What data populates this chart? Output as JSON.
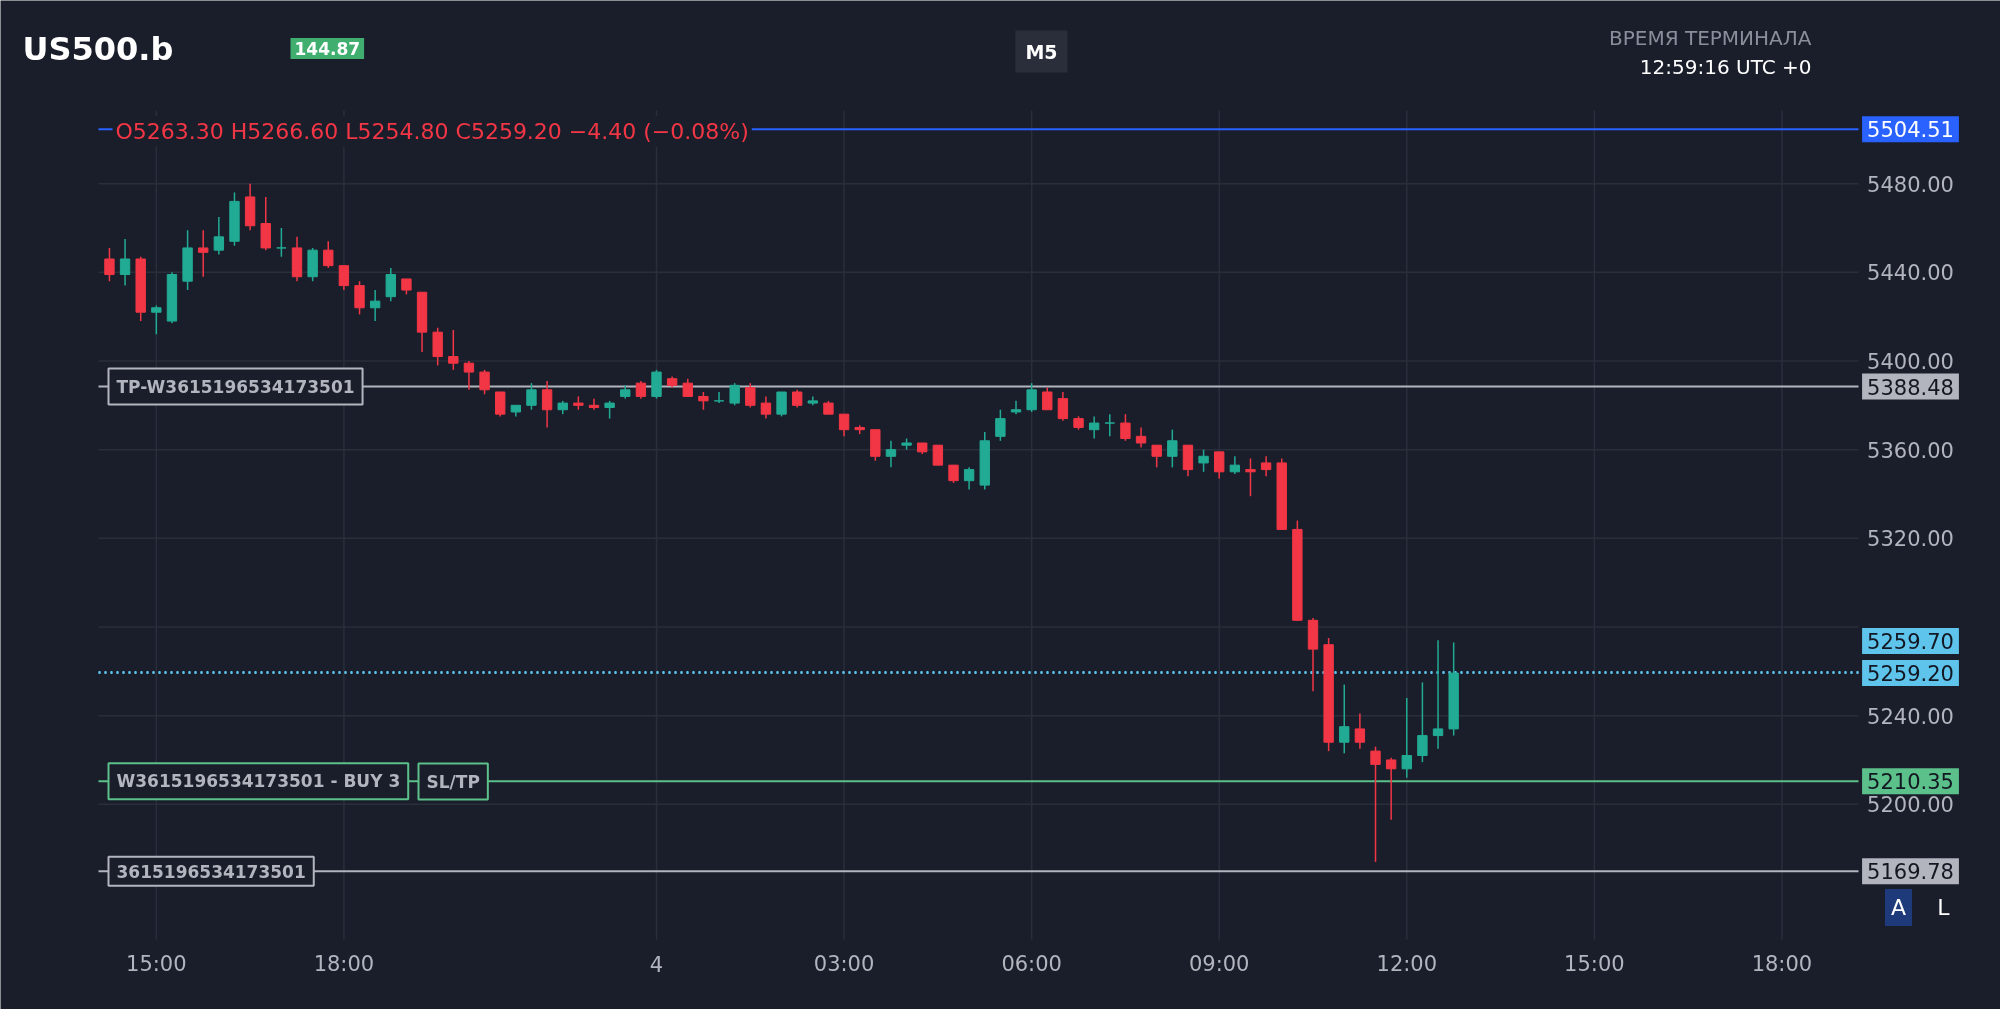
{
  "chart_data": {
    "type": "candlestick",
    "title": "US500.b",
    "annotations": [
      "144.87",
      "M5",
      "O5263.30 H5266.60 L5254.80 C5259.20 −4.40 (−0.08%)",
      "ВРЕМЯ ТЕРМИНАЛА",
      "12:59:16 UTC +0",
      "SL/TP",
      "A",
      "L",
      {
        "text": "TP-W3615196534173501",
        "y": 5388.48
      },
      {
        "text": "W3615196534173501 - BUY 3",
        "y": 5210.35
      },
      {
        "text": "3615196534173501",
        "y": 5169.78
      }
    ],
    "categories": [
      null,
      null,
      null,
      "15:00",
      null,
      null,
      null,
      null,
      null,
      null,
      null,
      null,
      null,
      null,
      null,
      "18:00",
      null,
      null,
      null,
      null,
      null,
      null,
      null,
      null,
      null,
      null,
      null,
      null,
      null,
      null,
      null,
      null,
      null,
      null,
      null,
      "4",
      null,
      null,
      null,
      null,
      null,
      null,
      null,
      null,
      null,
      null,
      null,
      "03:00",
      null,
      null,
      null,
      null,
      null,
      null,
      null,
      null,
      null,
      null,
      null,
      "06:00",
      null,
      null,
      null,
      null,
      null,
      null,
      null,
      null,
      null,
      null,
      null,
      "09:00",
      null,
      null,
      null,
      null,
      null,
      null,
      null,
      null,
      null,
      null,
      null,
      "12:00",
      null,
      null,
      null,
      null,
      null,
      null,
      null,
      null,
      null,
      null,
      null,
      "15:00",
      null,
      null,
      null,
      null,
      null,
      null,
      null,
      null,
      null,
      null,
      null,
      "18:00",
      null,
      null,
      null,
      null
    ],
    "ohlc": [
      [
        5446,
        5451,
        5436,
        5439
      ],
      [
        5439,
        5455,
        5434,
        5446
      ],
      [
        5446,
        5447,
        5418,
        5422
      ],
      [
        5422,
        5425,
        5412,
        5424
      ],
      [
        5418,
        5440,
        5417,
        5439
      ],
      [
        5436,
        5459,
        5432,
        5451
      ],
      [
        5451,
        5459,
        5438,
        5449
      ],
      [
        5450,
        5465,
        5448,
        5456
      ],
      [
        5454,
        5476,
        5452,
        5472
      ],
      [
        5474,
        5480,
        5459,
        5461
      ],
      [
        5462,
        5474,
        5450,
        5451
      ],
      [
        5451,
        5460,
        5447,
        5451
      ],
      [
        5451,
        5456,
        5436,
        5438
      ],
      [
        5438,
        5451,
        5436,
        5450
      ],
      [
        5450,
        5454,
        5442,
        5443
      ],
      [
        5443,
        5443,
        5432,
        5434
      ],
      [
        5434,
        5436,
        5421,
        5424
      ],
      [
        5424,
        5432,
        5418,
        5427
      ],
      [
        5429,
        5442,
        5427,
        5439
      ],
      [
        5437,
        5437,
        5430,
        5432
      ],
      [
        5431,
        5431,
        5404,
        5413
      ],
      [
        5413,
        5415,
        5398,
        5402
      ],
      [
        5402,
        5414,
        5396,
        5399
      ],
      [
        5399,
        5400,
        5387,
        5395
      ],
      [
        5395,
        5396,
        5385,
        5387
      ],
      [
        5386,
        5386,
        5375,
        5376
      ],
      [
        5377,
        5380,
        5375,
        5380
      ],
      [
        5380,
        5390,
        5378,
        5387
      ],
      [
        5387,
        5391,
        5370,
        5378
      ],
      [
        5378,
        5382,
        5376,
        5381
      ],
      [
        5381,
        5384,
        5378,
        5380
      ],
      [
        5380,
        5383,
        5378,
        5379
      ],
      [
        5379,
        5382,
        5374,
        5381
      ],
      [
        5384,
        5389,
        5383,
        5387
      ],
      [
        5390,
        5391,
        5383,
        5384
      ],
      [
        5384,
        5396,
        5383,
        5395
      ],
      [
        5392,
        5393,
        5388,
        5389
      ],
      [
        5390,
        5392,
        5384,
        5384
      ],
      [
        5384,
        5386,
        5378,
        5382
      ],
      [
        5382,
        5386,
        5381,
        5382
      ],
      [
        5381,
        5390,
        5380,
        5389
      ],
      [
        5388,
        5390,
        5379,
        5380
      ],
      [
        5381,
        5384,
        5374,
        5376
      ],
      [
        5376,
        5386,
        5375,
        5386
      ],
      [
        5386,
        5387,
        5379,
        5380
      ],
      [
        5381,
        5384,
        5380,
        5382
      ],
      [
        5381,
        5382,
        5376,
        5376
      ],
      [
        5376,
        5376,
        5366,
        5369
      ],
      [
        5370,
        5371,
        5367,
        5369
      ],
      [
        5369,
        5369,
        5355,
        5357
      ],
      [
        5357,
        5364,
        5352,
        5360
      ],
      [
        5362,
        5365,
        5360,
        5363
      ],
      [
        5363,
        5363,
        5358,
        5359
      ],
      [
        5362,
        5362,
        5353,
        5353
      ],
      [
        5353,
        5353,
        5345,
        5346
      ],
      [
        5346,
        5352,
        5342,
        5351
      ],
      [
        5344,
        5368,
        5342,
        5364
      ],
      [
        5366,
        5378,
        5364,
        5374
      ],
      [
        5377,
        5382,
        5376,
        5378
      ],
      [
        5378,
        5390,
        5377,
        5387
      ],
      [
        5386,
        5388,
        5378,
        5378
      ],
      [
        5383,
        5386,
        5373,
        5374
      ],
      [
        5374,
        5375,
        5369,
        5370
      ],
      [
        5369,
        5375,
        5365,
        5372
      ],
      [
        5372,
        5376,
        5366,
        5372
      ],
      [
        5372,
        5376,
        5364,
        5365
      ],
      [
        5366,
        5370,
        5361,
        5363
      ],
      [
        5362,
        5362,
        5352,
        5357
      ],
      [
        5357,
        5369,
        5352,
        5364
      ],
      [
        5362,
        5362,
        5348,
        5351
      ],
      [
        5354,
        5360,
        5350,
        5357
      ],
      [
        5359,
        5359,
        5347,
        5350
      ],
      [
        5350,
        5357,
        5349,
        5353
      ],
      [
        5351,
        5356,
        5339,
        5350
      ],
      [
        5354,
        5357,
        5348,
        5351
      ],
      [
        5354,
        5356,
        5324,
        5324
      ],
      [
        5324,
        5328,
        5283,
        5283
      ],
      [
        5283,
        5284,
        5251,
        5270
      ],
      [
        5272,
        5275,
        5224,
        5228
      ],
      [
        5228,
        5254,
        5223,
        5235
      ],
      [
        5234,
        5241,
        5225,
        5228
      ],
      [
        5224,
        5226,
        5174,
        5218
      ],
      [
        5220,
        5221,
        5193,
        5216
      ],
      [
        5216,
        5248,
        5212,
        5222
      ],
      [
        5222,
        5255,
        5219,
        5231
      ],
      [
        5231,
        5274,
        5225,
        5234
      ],
      [
        5234,
        5273,
        5231,
        5259.2
      ],
      null,
      null,
      null,
      null,
      null,
      null,
      null,
      null,
      null,
      null,
      null,
      null,
      null,
      null,
      null,
      null,
      null,
      null,
      null,
      null,
      null,
      null,
      null,
      null,
      null
    ],
    "ylim": [
      5139,
      5513
    ],
    "yticks": [
      {
        "value": 5200,
        "label": "5200.00"
      },
      {
        "value": 5240,
        "label": "5240.00"
      },
      {
        "value": 5280,
        "label": null
      },
      {
        "value": 5320,
        "label": "5320.00"
      },
      {
        "value": 5360,
        "label": "5360.00"
      },
      {
        "value": 5400,
        "label": "5400.00"
      },
      {
        "value": 5440,
        "label": "5440.00"
      },
      {
        "value": 5480,
        "label": "5480.00"
      }
    ],
    "grid": true,
    "ref_lines": [
      {
        "axis": "y",
        "value": 5504.51,
        "label": "5504.51",
        "color": "#2962ff",
        "line_style": "solid"
      },
      {
        "axis": "y",
        "value": 5388.48,
        "label": "5388.48",
        "color": "#b2b5be",
        "line_style": "solid"
      },
      {
        "axis": "y",
        "value": 5210.35,
        "label": "5210.35",
        "color": "#5cc08a",
        "line_style": "solid"
      },
      {
        "axis": "y",
        "value": 5169.78,
        "label": "5169.78",
        "color": "#b2b5be",
        "line_style": "solid"
      },
      {
        "axis": "y",
        "value": 5259.7,
        "label": "5259.70",
        "color": "#5ec4ec",
        "line_style": "dotted"
      },
      {
        "axis": "y",
        "value": 5259.2,
        "label": "5259.20",
        "color": "#5ec4ec",
        "line_style": "dotted"
      }
    ]
  }
}
